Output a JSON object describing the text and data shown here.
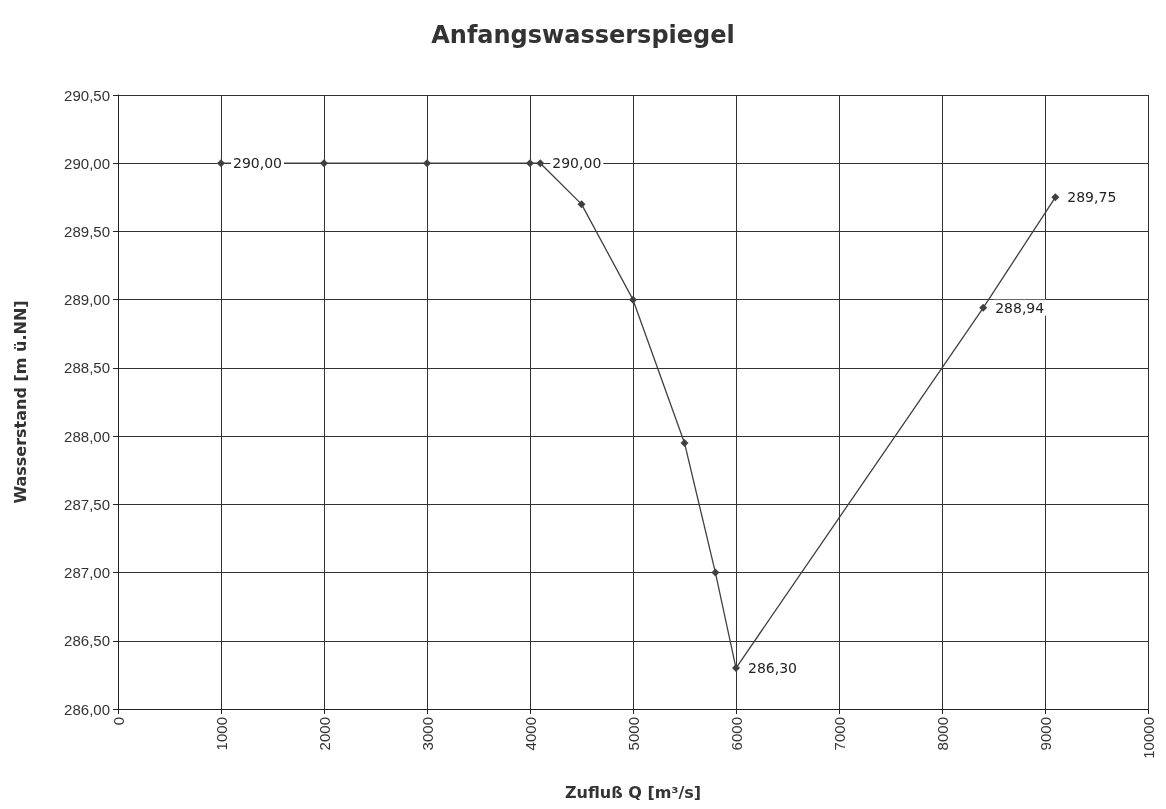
{
  "chart_data": {
    "type": "line",
    "title": "Anfangswasserspiegel",
    "xlabel": "Zufluß Q [m³/s]",
    "ylabel": "Wasserstand [m ü.NN]",
    "x": [
      1000,
      2000,
      3000,
      4000,
      4100,
      4500,
      5000,
      5500,
      5800,
      6000,
      8400,
      9100
    ],
    "series": [
      {
        "color": "#404040",
        "values": [
          290,
          290,
          290,
          290,
          290,
          289.7,
          289,
          287.95,
          287,
          286.3,
          288.94,
          289.75
        ],
        "value_labels": [
          "290,00",
          null,
          null,
          null,
          "290,00",
          null,
          null,
          null,
          null,
          "286,30",
          "288,94",
          "289,75"
        ]
      }
    ],
    "xlim": [
      0,
      10000
    ],
    "xticks": [
      0,
      1000,
      2000,
      3000,
      4000,
      5000,
      6000,
      7000,
      8000,
      9000,
      10000
    ],
    "ylim": [
      286,
      290.5
    ],
    "yticks": [
      {
        "value": 286,
        "label": "286,00"
      },
      {
        "value": 286.5,
        "label": "286,50"
      },
      {
        "value": 287,
        "label": "287,00"
      },
      {
        "value": 287.5,
        "label": "287,50"
      },
      {
        "value": 288,
        "label": "288,00"
      },
      {
        "value": 288.5,
        "label": "288,50"
      },
      {
        "value": 289,
        "label": "289,00"
      },
      {
        "value": 289.5,
        "label": "289,50"
      },
      {
        "value": 290,
        "label": "290,00"
      },
      {
        "value": 290.5,
        "label": "290,50"
      }
    ],
    "grid": true,
    "marker": "diamond",
    "line_style": "solid"
  }
}
